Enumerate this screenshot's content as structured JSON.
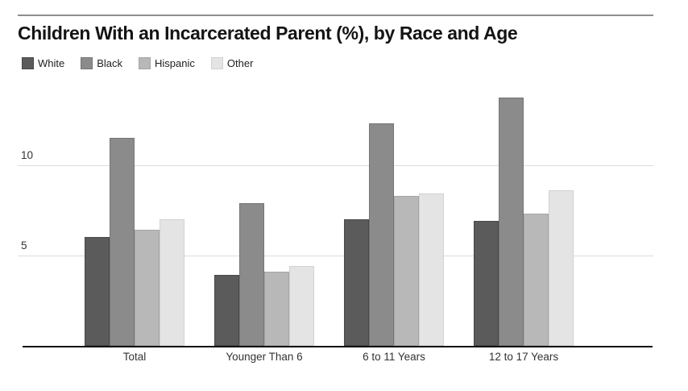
{
  "page": {
    "title": "Children With an Incarcerated Parent (%), by Race and Age"
  },
  "chart_data": {
    "type": "bar",
    "title": "Children With an Incarcerated Parent (%), by Race and Age",
    "categories": [
      "Total",
      "Younger Than 6",
      "6 to 11 Years",
      "12 to 17 Years"
    ],
    "series": [
      {
        "name": "White",
        "color": "#5b5b5b",
        "border_color": "#474747",
        "values": [
          6.0,
          3.9,
          7.0,
          6.9
        ]
      },
      {
        "name": "Black",
        "color": "#8b8b8b",
        "border_color": "#757575",
        "values": [
          11.5,
          7.9,
          12.3,
          13.7
        ]
      },
      {
        "name": "Hispanic",
        "color": "#b8b8b8",
        "border_color": "#a5a5a5",
        "values": [
          6.4,
          4.1,
          8.3,
          7.3
        ]
      },
      {
        "name": "Other",
        "color": "#e4e4e4",
        "border_color": "#d1d1d1",
        "values": [
          7.0,
          4.4,
          8.4,
          8.6
        ]
      }
    ],
    "yticks": [
      5,
      10
    ],
    "ylim": [
      0,
      14.2
    ],
    "xlabel": "",
    "ylabel": "",
    "grid": "horizontal",
    "legend_position": "top-left",
    "colors": {
      "gridline": "#dcdcdc",
      "axis_line": "#131313",
      "top_rule": "#8f8f8f",
      "text": "#333333",
      "title_text": "#141414",
      "background": "#ffffff"
    }
  }
}
